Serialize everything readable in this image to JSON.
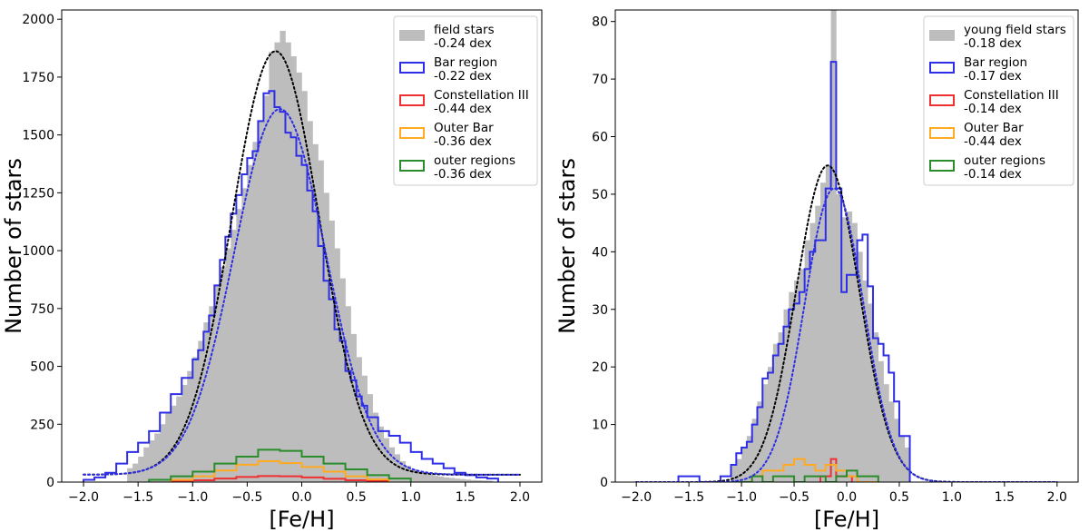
{
  "chart_data": [
    {
      "type": "histogram",
      "panel": "left",
      "xlabel": "[Fe/H]",
      "ylabel": "Number of stars",
      "xlim": [
        -2.2,
        2.2
      ],
      "ylim": [
        0,
        2040
      ],
      "xticks": [
        -2.0,
        -1.5,
        -1.0,
        -0.5,
        0.0,
        0.5,
        1.0,
        1.5,
        2.0
      ],
      "xtick_labels": [
        "−2.0",
        "−1.5",
        "−1.0",
        "−0.5",
        "0.0",
        "0.5",
        "1.0",
        "1.5",
        "2.0"
      ],
      "yticks": [
        0,
        250,
        500,
        750,
        1000,
        1250,
        1500,
        1750,
        2000
      ],
      "ytick_labels": [
        "0",
        "250",
        "500",
        "750",
        "1000",
        "1250",
        "1500",
        "1750",
        "2000"
      ],
      "bin_width": 0.05,
      "gray_bins": [
        [
          -1.6,
          60
        ],
        [
          -1.55,
          80
        ],
        [
          -1.5,
          110
        ],
        [
          -1.45,
          150
        ],
        [
          -1.4,
          180
        ],
        [
          -1.35,
          210
        ],
        [
          -1.3,
          250
        ],
        [
          -1.25,
          300
        ],
        [
          -1.2,
          330
        ],
        [
          -1.15,
          370
        ],
        [
          -1.1,
          420
        ],
        [
          -1.05,
          480
        ],
        [
          -1.0,
          540
        ],
        [
          -0.95,
          610
        ],
        [
          -0.9,
          690
        ],
        [
          -0.85,
          760
        ],
        [
          -0.8,
          850
        ],
        [
          -0.75,
          930
        ],
        [
          -0.7,
          1010
        ],
        [
          -0.65,
          1090
        ],
        [
          -0.6,
          1180
        ],
        [
          -0.55,
          1270
        ],
        [
          -0.5,
          1370
        ],
        [
          -0.45,
          1470
        ],
        [
          -0.4,
          1560
        ],
        [
          -0.35,
          1670
        ],
        [
          -0.3,
          1860
        ],
        [
          -0.25,
          1900
        ],
        [
          -0.2,
          1950
        ],
        [
          -0.15,
          1900
        ],
        [
          -0.1,
          1840
        ],
        [
          -0.05,
          1770
        ],
        [
          0.0,
          1690
        ],
        [
          0.05,
          1560
        ],
        [
          0.1,
          1460
        ],
        [
          0.15,
          1390
        ],
        [
          0.2,
          1250
        ],
        [
          0.25,
          1130
        ],
        [
          0.3,
          1010
        ],
        [
          0.35,
          880
        ],
        [
          0.4,
          760
        ],
        [
          0.45,
          640
        ],
        [
          0.5,
          540
        ],
        [
          0.55,
          460
        ],
        [
          0.6,
          380
        ],
        [
          0.65,
          300
        ],
        [
          0.7,
          240
        ],
        [
          0.75,
          190
        ],
        [
          0.8,
          150
        ],
        [
          0.85,
          120
        ],
        [
          0.9,
          90
        ],
        [
          0.95,
          70
        ],
        [
          1.0,
          55
        ],
        [
          1.05,
          45
        ],
        [
          1.1,
          38
        ],
        [
          1.15,
          32
        ],
        [
          1.2,
          27
        ],
        [
          1.25,
          24
        ],
        [
          1.3,
          20
        ],
        [
          1.35,
          18
        ],
        [
          1.4,
          15
        ],
        [
          1.45,
          13
        ],
        [
          1.5,
          11
        ],
        [
          1.55,
          9
        ],
        [
          1.6,
          8
        ],
        [
          1.65,
          7
        ],
        [
          1.7,
          6
        ]
      ],
      "series": [
        {
          "name": "field stars",
          "value_label": "-0.24 dex",
          "color": "#bdbdbd",
          "style": "filled-histogram"
        },
        {
          "name": "Bar region",
          "value_label": "-0.22 dex",
          "color": "#2e2ee6",
          "style": "step",
          "edges": [
            -2.0,
            -1.9,
            -1.8,
            -1.7,
            -1.6,
            -1.5,
            -1.4,
            -1.3,
            -1.2,
            -1.1,
            -1.0,
            -0.95,
            -0.9,
            -0.85,
            -0.8,
            -0.75,
            -0.7,
            -0.65,
            -0.6,
            -0.55,
            -0.5,
            -0.45,
            -0.4,
            -0.35,
            -0.3,
            -0.25,
            -0.2,
            -0.15,
            -0.1,
            -0.05,
            0.0,
            0.05,
            0.1,
            0.15,
            0.2,
            0.25,
            0.3,
            0.35,
            0.4,
            0.45,
            0.5,
            0.55,
            0.6,
            0.7,
            0.8,
            0.9,
            1.0,
            1.1,
            1.2,
            1.3,
            1.4,
            1.5,
            1.6,
            1.7,
            1.8
          ],
          "values": [
            10,
            20,
            40,
            80,
            130,
            170,
            220,
            300,
            380,
            450,
            530,
            570,
            650,
            720,
            850,
            960,
            1060,
            1160,
            1240,
            1330,
            1400,
            1430,
            1560,
            1680,
            1690,
            1620,
            1600,
            1510,
            1490,
            1410,
            1370,
            1260,
            1170,
            1020,
            870,
            790,
            660,
            610,
            480,
            440,
            370,
            330,
            280,
            220,
            200,
            170,
            130,
            100,
            80,
            60,
            40,
            30,
            20,
            15
          ]
        },
        {
          "name": "Constellation III",
          "value_label": "-0.44 dex",
          "color": "#ee3030",
          "style": "step",
          "edges": [
            -1.2,
            -1.0,
            -0.8,
            -0.6,
            -0.4,
            -0.2,
            0.0,
            0.2,
            0.4,
            0.6,
            0.8
          ],
          "values": [
            5,
            8,
            15,
            22,
            26,
            25,
            20,
            14,
            8,
            4
          ]
        },
        {
          "name": "Outer Bar",
          "value_label": "-0.36 dex",
          "color": "#ffaa20",
          "style": "step",
          "edges": [
            -1.2,
            -1.0,
            -0.8,
            -0.6,
            -0.4,
            -0.2,
            0.0,
            0.2,
            0.4,
            0.6,
            0.8
          ],
          "values": [
            10,
            25,
            50,
            75,
            90,
            82,
            65,
            45,
            25,
            12
          ]
        },
        {
          "name": "outer regions",
          "value_label": "-0.36 dex",
          "color": "#2a8c2a",
          "style": "step",
          "edges": [
            -1.4,
            -1.2,
            -1.0,
            -0.8,
            -0.6,
            -0.4,
            -0.2,
            0.0,
            0.2,
            0.4,
            0.6,
            0.8,
            1.0
          ],
          "values": [
            10,
            25,
            45,
            80,
            110,
            140,
            135,
            110,
            80,
            55,
            30,
            15
          ]
        }
      ],
      "fit_curves": [
        {
          "color": "#000000",
          "style": "dotted",
          "amplitude": 1830,
          "mean": -0.24,
          "sigma": 0.4,
          "baseline": 32
        },
        {
          "color": "#2e2ee6",
          "style": "dotted",
          "amplitude": 1580,
          "mean": -0.2,
          "sigma": 0.42,
          "baseline": 32
        }
      ]
    },
    {
      "type": "histogram",
      "panel": "right",
      "xlabel": "[Fe/H]",
      "ylabel": "Number of stars",
      "xlim": [
        -2.2,
        2.2
      ],
      "ylim": [
        0,
        82
      ],
      "xticks": [
        -2.0,
        -1.5,
        -1.0,
        -0.5,
        0.0,
        0.5,
        1.0,
        1.5,
        2.0
      ],
      "xtick_labels": [
        "−2.0",
        "−1.5",
        "−1.0",
        "−0.5",
        "0.0",
        "0.5",
        "1.0",
        "1.5",
        "2.0"
      ],
      "yticks": [
        0,
        10,
        20,
        30,
        40,
        50,
        60,
        70,
        80
      ],
      "ytick_labels": [
        "0",
        "10",
        "20",
        "30",
        "40",
        "50",
        "60",
        "70",
        "80"
      ],
      "bin_width": 0.05,
      "gray_bins": [
        [
          -1.1,
          3
        ],
        [
          -1.05,
          4
        ],
        [
          -1.0,
          6
        ],
        [
          -0.95,
          8
        ],
        [
          -0.9,
          11
        ],
        [
          -0.85,
          14
        ],
        [
          -0.8,
          17
        ],
        [
          -0.75,
          20
        ],
        [
          -0.7,
          24
        ],
        [
          -0.65,
          26
        ],
        [
          -0.6,
          30
        ],
        [
          -0.55,
          33
        ],
        [
          -0.5,
          35
        ],
        [
          -0.45,
          37
        ],
        [
          -0.4,
          42
        ],
        [
          -0.35,
          45
        ],
        [
          -0.3,
          48
        ],
        [
          -0.25,
          52
        ],
        [
          -0.2,
          55
        ],
        [
          -0.15,
          83
        ],
        [
          -0.1,
          50
        ],
        [
          -0.05,
          46
        ],
        [
          0.0,
          47
        ],
        [
          0.05,
          45
        ],
        [
          0.1,
          40
        ],
        [
          0.15,
          35
        ],
        [
          0.2,
          31
        ],
        [
          0.25,
          26
        ],
        [
          0.3,
          21
        ],
        [
          0.35,
          17
        ],
        [
          0.4,
          14
        ],
        [
          0.45,
          11
        ],
        [
          0.5,
          8
        ],
        [
          0.55,
          6
        ]
      ],
      "series": [
        {
          "name": "young field stars",
          "value_label": "-0.18 dex",
          "color": "#bdbdbd",
          "style": "filled-histogram"
        },
        {
          "name": "Bar region",
          "value_label": "-0.17 dex",
          "color": "#2e2ee6",
          "style": "step",
          "edges": [
            -1.6,
            -1.5,
            -1.4,
            -1.3,
            -1.2,
            -1.1,
            -1.05,
            -1.0,
            -0.95,
            -0.9,
            -0.85,
            -0.8,
            -0.75,
            -0.7,
            -0.65,
            -0.6,
            -0.55,
            -0.5,
            -0.45,
            -0.4,
            -0.35,
            -0.3,
            -0.25,
            -0.2,
            -0.15,
            -0.1,
            -0.05,
            0.0,
            0.05,
            0.1,
            0.15,
            0.2,
            0.25,
            0.3,
            0.35,
            0.4,
            0.45,
            0.5,
            0.6
          ],
          "values": [
            1,
            1,
            0,
            0,
            1,
            3,
            5,
            6,
            7,
            10,
            13,
            18,
            19,
            22,
            24,
            27,
            30,
            31,
            33,
            37,
            40,
            42,
            42,
            51,
            73,
            51,
            33,
            36,
            36,
            42,
            43,
            34,
            25,
            24,
            22,
            19,
            14,
            8
          ]
        },
        {
          "name": "Constellation III",
          "value_label": "-0.14 dex",
          "color": "#ee3030",
          "style": "step",
          "edges": [
            -0.25,
            -0.15,
            -0.1,
            -0.05,
            0.05
          ],
          "values": [
            1,
            4,
            1,
            1
          ]
        },
        {
          "name": "Outer Bar",
          "value_label": "-0.44 dex",
          "color": "#ffaa20",
          "style": "step",
          "edges": [
            -1.1,
            -0.9,
            -0.8,
            -0.7,
            -0.6,
            -0.5,
            -0.4,
            -0.3,
            -0.2,
            -0.1,
            0.0,
            0.1,
            0.3
          ],
          "values": [
            0,
            1,
            2,
            2,
            3,
            4,
            3,
            2,
            3,
            2,
            1,
            0
          ]
        },
        {
          "name": "outer regions",
          "value_label": "-0.14 dex",
          "color": "#2a8c2a",
          "style": "step",
          "edges": [
            -1.1,
            -0.9,
            -0.8,
            -0.7,
            -0.6,
            -0.5,
            -0.4,
            -0.3,
            -0.2,
            -0.1,
            0.0,
            0.1,
            0.2,
            0.3
          ],
          "values": [
            0,
            1,
            0,
            1,
            1,
            0,
            1,
            1,
            0,
            1,
            2,
            1,
            1
          ]
        }
      ],
      "fit_curves": [
        {
          "color": "#000000",
          "style": "dotted",
          "amplitude": 55,
          "mean": -0.18,
          "sigma": 0.3,
          "baseline": 0
        },
        {
          "color": "#2e2ee6",
          "style": "dotted",
          "amplitude": 51,
          "mean": -0.12,
          "sigma": 0.28,
          "baseline": 0
        }
      ]
    }
  ]
}
